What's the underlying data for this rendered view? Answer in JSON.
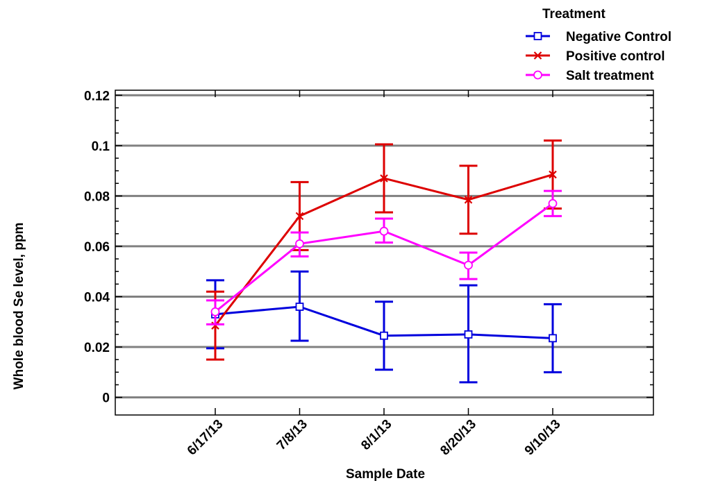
{
  "chart_data": {
    "type": "line",
    "title": "",
    "xlabel": "Sample Date",
    "ylabel": "Whole blood Se level, ppm",
    "categories": [
      "6/17/13",
      "7/8/13",
      "8/1/13",
      "8/20/13",
      "9/10/13"
    ],
    "ylim": [
      -0.007,
      0.122
    ],
    "yticks": [
      0,
      0.02,
      0.04,
      0.06,
      0.08,
      0.1,
      0.12
    ],
    "ytick_labels": [
      "0",
      "0.02",
      "0.04",
      "0.06",
      "0.08",
      "0.1",
      "0.12"
    ],
    "grid": "horizontal",
    "legend": {
      "title": "Treatment",
      "placement": "top-right"
    },
    "series": [
      {
        "name": "Negative Control",
        "color": "#0000dd",
        "marker": "square",
        "values": [
          0.033,
          0.036,
          0.0245,
          0.025,
          0.0235
        ],
        "err_low": [
          0.0195,
          0.0225,
          0.011,
          0.006,
          0.01
        ],
        "err_high": [
          0.0465,
          0.05,
          0.038,
          0.0445,
          0.037
        ]
      },
      {
        "name": "Positive control",
        "color": "#dd0000",
        "marker": "x",
        "values": [
          0.0285,
          0.072,
          0.087,
          0.0785,
          0.0885
        ],
        "err_low": [
          0.015,
          0.0585,
          0.0735,
          0.065,
          0.075
        ],
        "err_high": [
          0.042,
          0.0855,
          0.1005,
          0.092,
          0.102
        ]
      },
      {
        "name": "Salt treatment",
        "color": "#ff00ff",
        "marker": "circle",
        "values": [
          0.034,
          0.061,
          0.066,
          0.0525,
          0.077
        ],
        "err_low": [
          0.029,
          0.056,
          0.0615,
          0.047,
          0.072
        ],
        "err_high": [
          0.0385,
          0.0655,
          0.071,
          0.0575,
          0.082
        ]
      }
    ]
  }
}
